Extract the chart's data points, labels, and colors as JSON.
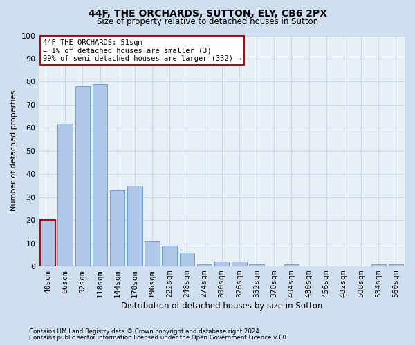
{
  "title1": "44F, THE ORCHARDS, SUTTON, ELY, CB6 2PX",
  "title2": "Size of property relative to detached houses in Sutton",
  "xlabel": "Distribution of detached houses by size in Sutton",
  "ylabel": "Number of detached properties",
  "categories": [
    "40sqm",
    "66sqm",
    "92sqm",
    "118sqm",
    "144sqm",
    "170sqm",
    "196sqm",
    "222sqm",
    "248sqm",
    "274sqm",
    "300sqm",
    "326sqm",
    "352sqm",
    "378sqm",
    "404sqm",
    "430sqm",
    "456sqm",
    "482sqm",
    "508sqm",
    "534sqm",
    "560sqm"
  ],
  "values": [
    20,
    62,
    78,
    79,
    33,
    35,
    11,
    9,
    6,
    1,
    2,
    2,
    1,
    0,
    1,
    0,
    0,
    0,
    0,
    1,
    1
  ],
  "bar_color": "#aec6e8",
  "bar_edge_color": "#5b9bd5",
  "annotation_text": "44F THE ORCHARDS: 51sqm\n← 1% of detached houses are smaller (3)\n99% of semi-detached houses are larger (332) →",
  "annotation_box_color": "#ffffff",
  "annotation_box_edge_color": "#cc0000",
  "grid_color": "#c8d8ea",
  "bg_color": "#d0dff0",
  "plot_bg_color": "#e8f0f8",
  "footer_line1": "Contains HM Land Registry data © Crown copyright and database right 2024.",
  "footer_line2": "Contains public sector information licensed under the Open Government Licence v3.0.",
  "ylim": [
    0,
    100
  ],
  "property_bar_index": 0,
  "property_bar_edge_color": "#cc0000"
}
